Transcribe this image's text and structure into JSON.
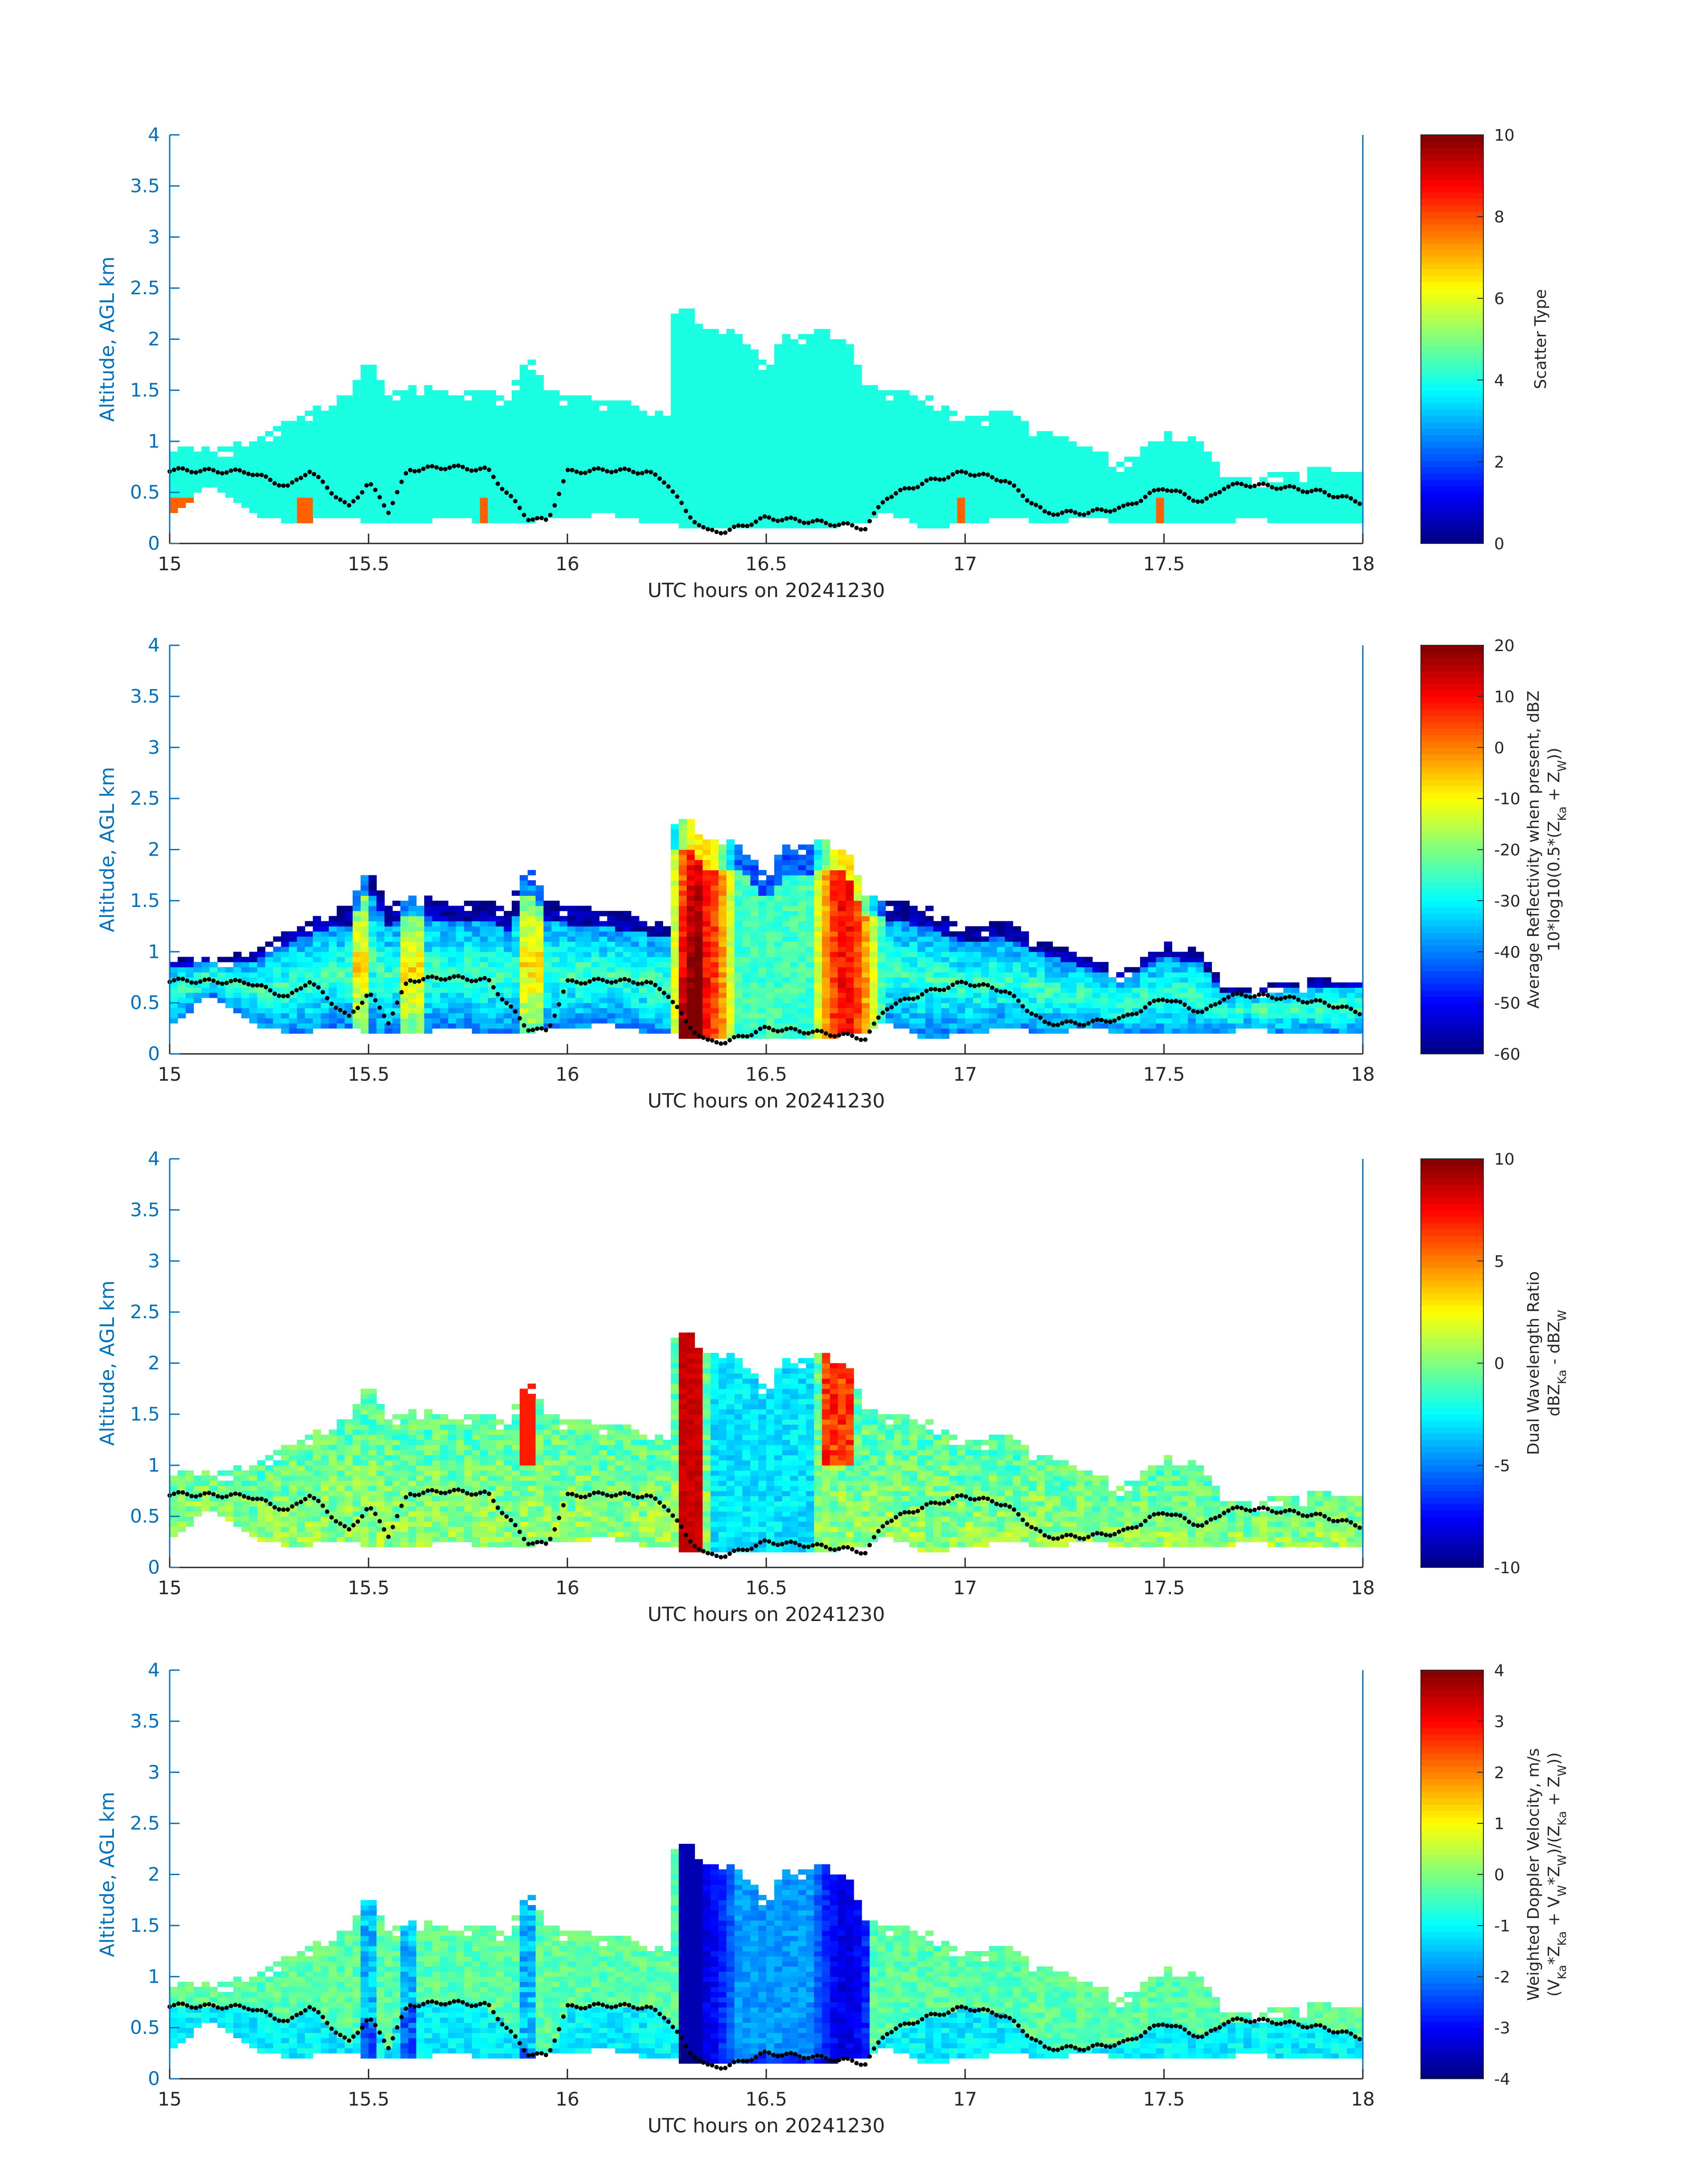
{
  "colors": {
    "axis": "#0072bd",
    "text": "#262626",
    "background": "#ffffff",
    "melting_layer_dots": "#000000",
    "colormap": "jet"
  },
  "xlabel": "UTC hours on 20241230",
  "ylabel": "Altitude, AGL km",
  "x_ticks": [
    "15",
    "15.5",
    "16",
    "16.5",
    "17",
    "17.5",
    "18"
  ],
  "y_ticks": [
    "0",
    "0.5",
    "1",
    "1.5",
    "2",
    "2.5",
    "3",
    "3.5",
    "4"
  ],
  "chart_data": [
    {
      "type": "heatmap",
      "field": "scatter_type",
      "xlim": [
        15,
        18
      ],
      "ylim": [
        0,
        4
      ],
      "clim": [
        0,
        10
      ],
      "colorbar_ticks": [
        "0",
        "2",
        "4",
        "6",
        "8",
        "10"
      ],
      "colorbar_title": "Scatter Type",
      "colorbar_title_line2": "",
      "cloud_value": 3.6,
      "precip_value": 7.8,
      "precip_x": [
        15.02,
        15.05,
        15.34,
        15.79,
        16.99,
        17.49
      ]
    },
    {
      "type": "heatmap",
      "field": "reflectivity",
      "xlim": [
        15,
        18
      ],
      "ylim": [
        0,
        4
      ],
      "clim": [
        -60,
        20
      ],
      "colorbar_ticks": [
        "-60",
        "-50",
        "-40",
        "-30",
        "-20",
        "-10",
        "0",
        "10",
        "20"
      ],
      "colorbar_title": "Average Reflectivity when present, dBZ",
      "colorbar_title_line2": "10*log10(0.5*(Z",
      "colorbar_title_sub1": "Ka",
      "colorbar_title_mid": " + Z",
      "colorbar_title_sub2": "W",
      "colorbar_title_end": "))"
    },
    {
      "type": "heatmap",
      "field": "dual_wavelength_ratio",
      "xlim": [
        15,
        18
      ],
      "ylim": [
        0,
        4
      ],
      "clim": [
        -10,
        10
      ],
      "colorbar_ticks": [
        "-10",
        "-5",
        "0",
        "5",
        "10"
      ],
      "colorbar_title": "Dual Wavelength Ratio",
      "colorbar_title_line2": "dBZ",
      "colorbar_title_sub1": "Ka",
      "colorbar_title_mid": " - dBZ",
      "colorbar_title_sub2": "W",
      "colorbar_title_end": ""
    },
    {
      "type": "heatmap",
      "field": "doppler_velocity",
      "xlim": [
        15,
        18
      ],
      "ylim": [
        0,
        4
      ],
      "clim": [
        -4,
        4
      ],
      "colorbar_ticks": [
        "-4",
        "-3",
        "-2",
        "-1",
        "0",
        "1",
        "2",
        "3",
        "4"
      ],
      "colorbar_title": "Weighted Doppler Velocity, m/s",
      "colorbar_title_line2": "(V",
      "colorbar_title_sub1": "Ka",
      "colorbar_title_mid": "*Z",
      "colorbar_title_sub2": "Ka",
      "colorbar_title_end": " + V",
      "colorbar_title_sub3": "W",
      "colorbar_title_end2": "*Z",
      "colorbar_title_sub4": "W",
      "colorbar_title_end3": ")/(Z",
      "colorbar_title_sub5": "Ka",
      "colorbar_title_end4": " + Z",
      "colorbar_title_sub6": "W",
      "colorbar_title_end5": "))"
    }
  ],
  "cloud_profile": {
    "x": [
      15.0,
      15.1,
      15.2,
      15.3,
      15.4,
      15.45,
      15.5,
      15.55,
      15.6,
      15.7,
      15.8,
      15.85,
      15.9,
      15.95,
      16.0,
      16.1,
      16.2,
      16.25,
      16.27,
      16.3,
      16.35,
      16.4,
      16.45,
      16.5,
      16.55,
      16.6,
      16.65,
      16.7,
      16.75,
      16.8,
      16.9,
      17.0,
      17.1,
      17.2,
      17.3,
      17.4,
      17.5,
      17.6,
      17.65,
      17.7,
      17.8,
      17.9,
      18.0
    ],
    "top": [
      0.95,
      0.95,
      1.0,
      1.25,
      1.4,
      1.45,
      1.85,
      1.45,
      1.55,
      1.5,
      1.5,
      1.4,
      1.85,
      1.5,
      1.45,
      1.4,
      1.35,
      1.3,
      2.3,
      2.35,
      2.1,
      2.1,
      2.05,
      1.75,
      2.05,
      2.05,
      2.1,
      2.05,
      1.55,
      1.5,
      1.45,
      1.25,
      1.3,
      1.1,
      0.95,
      0.8,
      1.1,
      1.0,
      0.65,
      0.65,
      0.7,
      0.75,
      0.75
    ],
    "bottom": [
      0.25,
      0.6,
      0.3,
      0.2,
      0.25,
      0.25,
      0.2,
      0.2,
      0.2,
      0.25,
      0.2,
      0.2,
      0.2,
      0.25,
      0.25,
      0.3,
      0.2,
      0.2,
      0.2,
      0.15,
      0.15,
      0.15,
      0.15,
      0.15,
      0.15,
      0.15,
      0.15,
      0.2,
      0.2,
      0.3,
      0.15,
      0.2,
      0.25,
      0.2,
      0.25,
      0.2,
      0.2,
      0.2,
      0.2,
      0.25,
      0.2,
      0.2,
      0.2
    ]
  },
  "melting_layer": {
    "x": [
      15.0,
      15.1,
      15.2,
      15.3,
      15.35,
      15.45,
      15.5,
      15.55,
      15.6,
      15.7,
      15.8,
      15.9,
      15.95,
      16.0,
      16.1,
      16.2,
      16.25,
      16.3,
      16.35,
      16.4,
      16.5,
      16.6,
      16.7,
      16.75,
      16.8,
      16.9,
      17.0,
      17.1,
      17.2,
      17.3,
      17.4,
      17.5,
      17.6,
      17.65,
      17.7,
      17.8,
      17.9,
      18.0
    ],
    "y": [
      0.72,
      0.71,
      0.7,
      0.55,
      0.72,
      0.35,
      0.6,
      0.32,
      0.72,
      0.75,
      0.72,
      0.25,
      0.22,
      0.7,
      0.72,
      0.7,
      0.6,
      0.3,
      0.12,
      0.12,
      0.25,
      0.22,
      0.18,
      0.15,
      0.45,
      0.6,
      0.7,
      0.62,
      0.3,
      0.3,
      0.35,
      0.55,
      0.4,
      0.55,
      0.58,
      0.55,
      0.5,
      0.4
    ]
  }
}
